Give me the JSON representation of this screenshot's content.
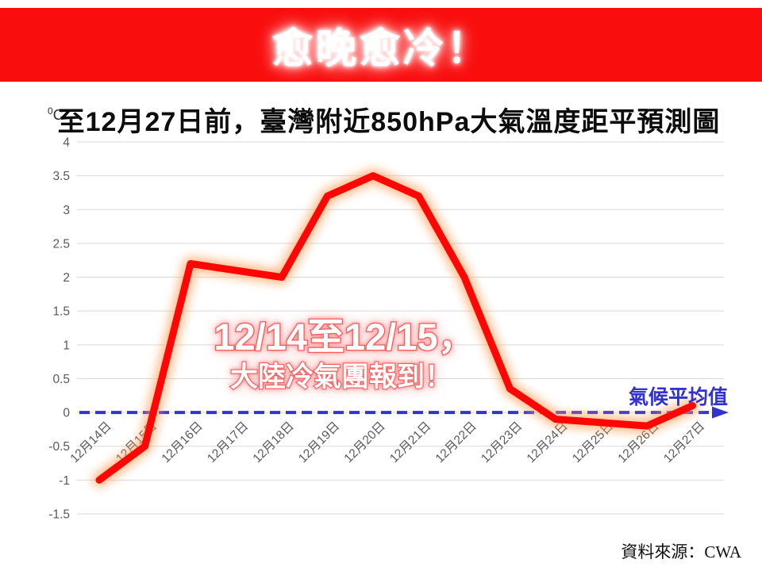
{
  "banner": {
    "title": "愈晚愈冷！"
  },
  "annotation": {
    "line1": "12/14至12/15，",
    "line2": "大陸冷氣團報到！"
  },
  "source": {
    "text": "資料來源：CWA"
  },
  "colors": {
    "banner_bg": "#f90d0d",
    "line": "#ff0606",
    "line_glow": "#ff9d55",
    "baseline_blue": "#3232cf",
    "grid": "#d9d9d9",
    "tick_text": "#595959"
  },
  "chart_data": {
    "type": "line",
    "title": "至12月27日前，臺灣附近850hPa大氣溫度距平預測圖",
    "unit": {
      "sup": "0",
      "main": "C"
    },
    "categories": [
      "12月14日",
      "12月15日",
      "12月16日",
      "12月17日",
      "12月18日",
      "12月19日",
      "12月20日",
      "12月21日",
      "12月22日",
      "12月23日",
      "12月24日",
      "12月25日",
      "12月26日",
      "12月27日"
    ],
    "series": [
      {
        "values": [
          -1,
          -0.5,
          2.2,
          2.1,
          2,
          3.2,
          3.5,
          3.2,
          2,
          0.35,
          -0.1,
          -0.15,
          -0.2,
          0.1
        ]
      }
    ],
    "ylim": [
      -1.5,
      4
    ],
    "yticks": [
      4,
      3.5,
      3,
      2.5,
      2,
      1.5,
      1,
      0.5,
      0,
      -0.5,
      -1,
      -1.5
    ],
    "ytick_labels": [
      "4",
      "3.5",
      "3",
      "2.5",
      "2",
      "1.5",
      "1",
      "0.5",
      "0",
      "-0.5",
      "-1",
      "-1.5"
    ],
    "grid": true,
    "legend_position": "none",
    "baseline": {
      "value": 0,
      "label": "氣候平均值",
      "style": "dashed-arrow"
    }
  }
}
